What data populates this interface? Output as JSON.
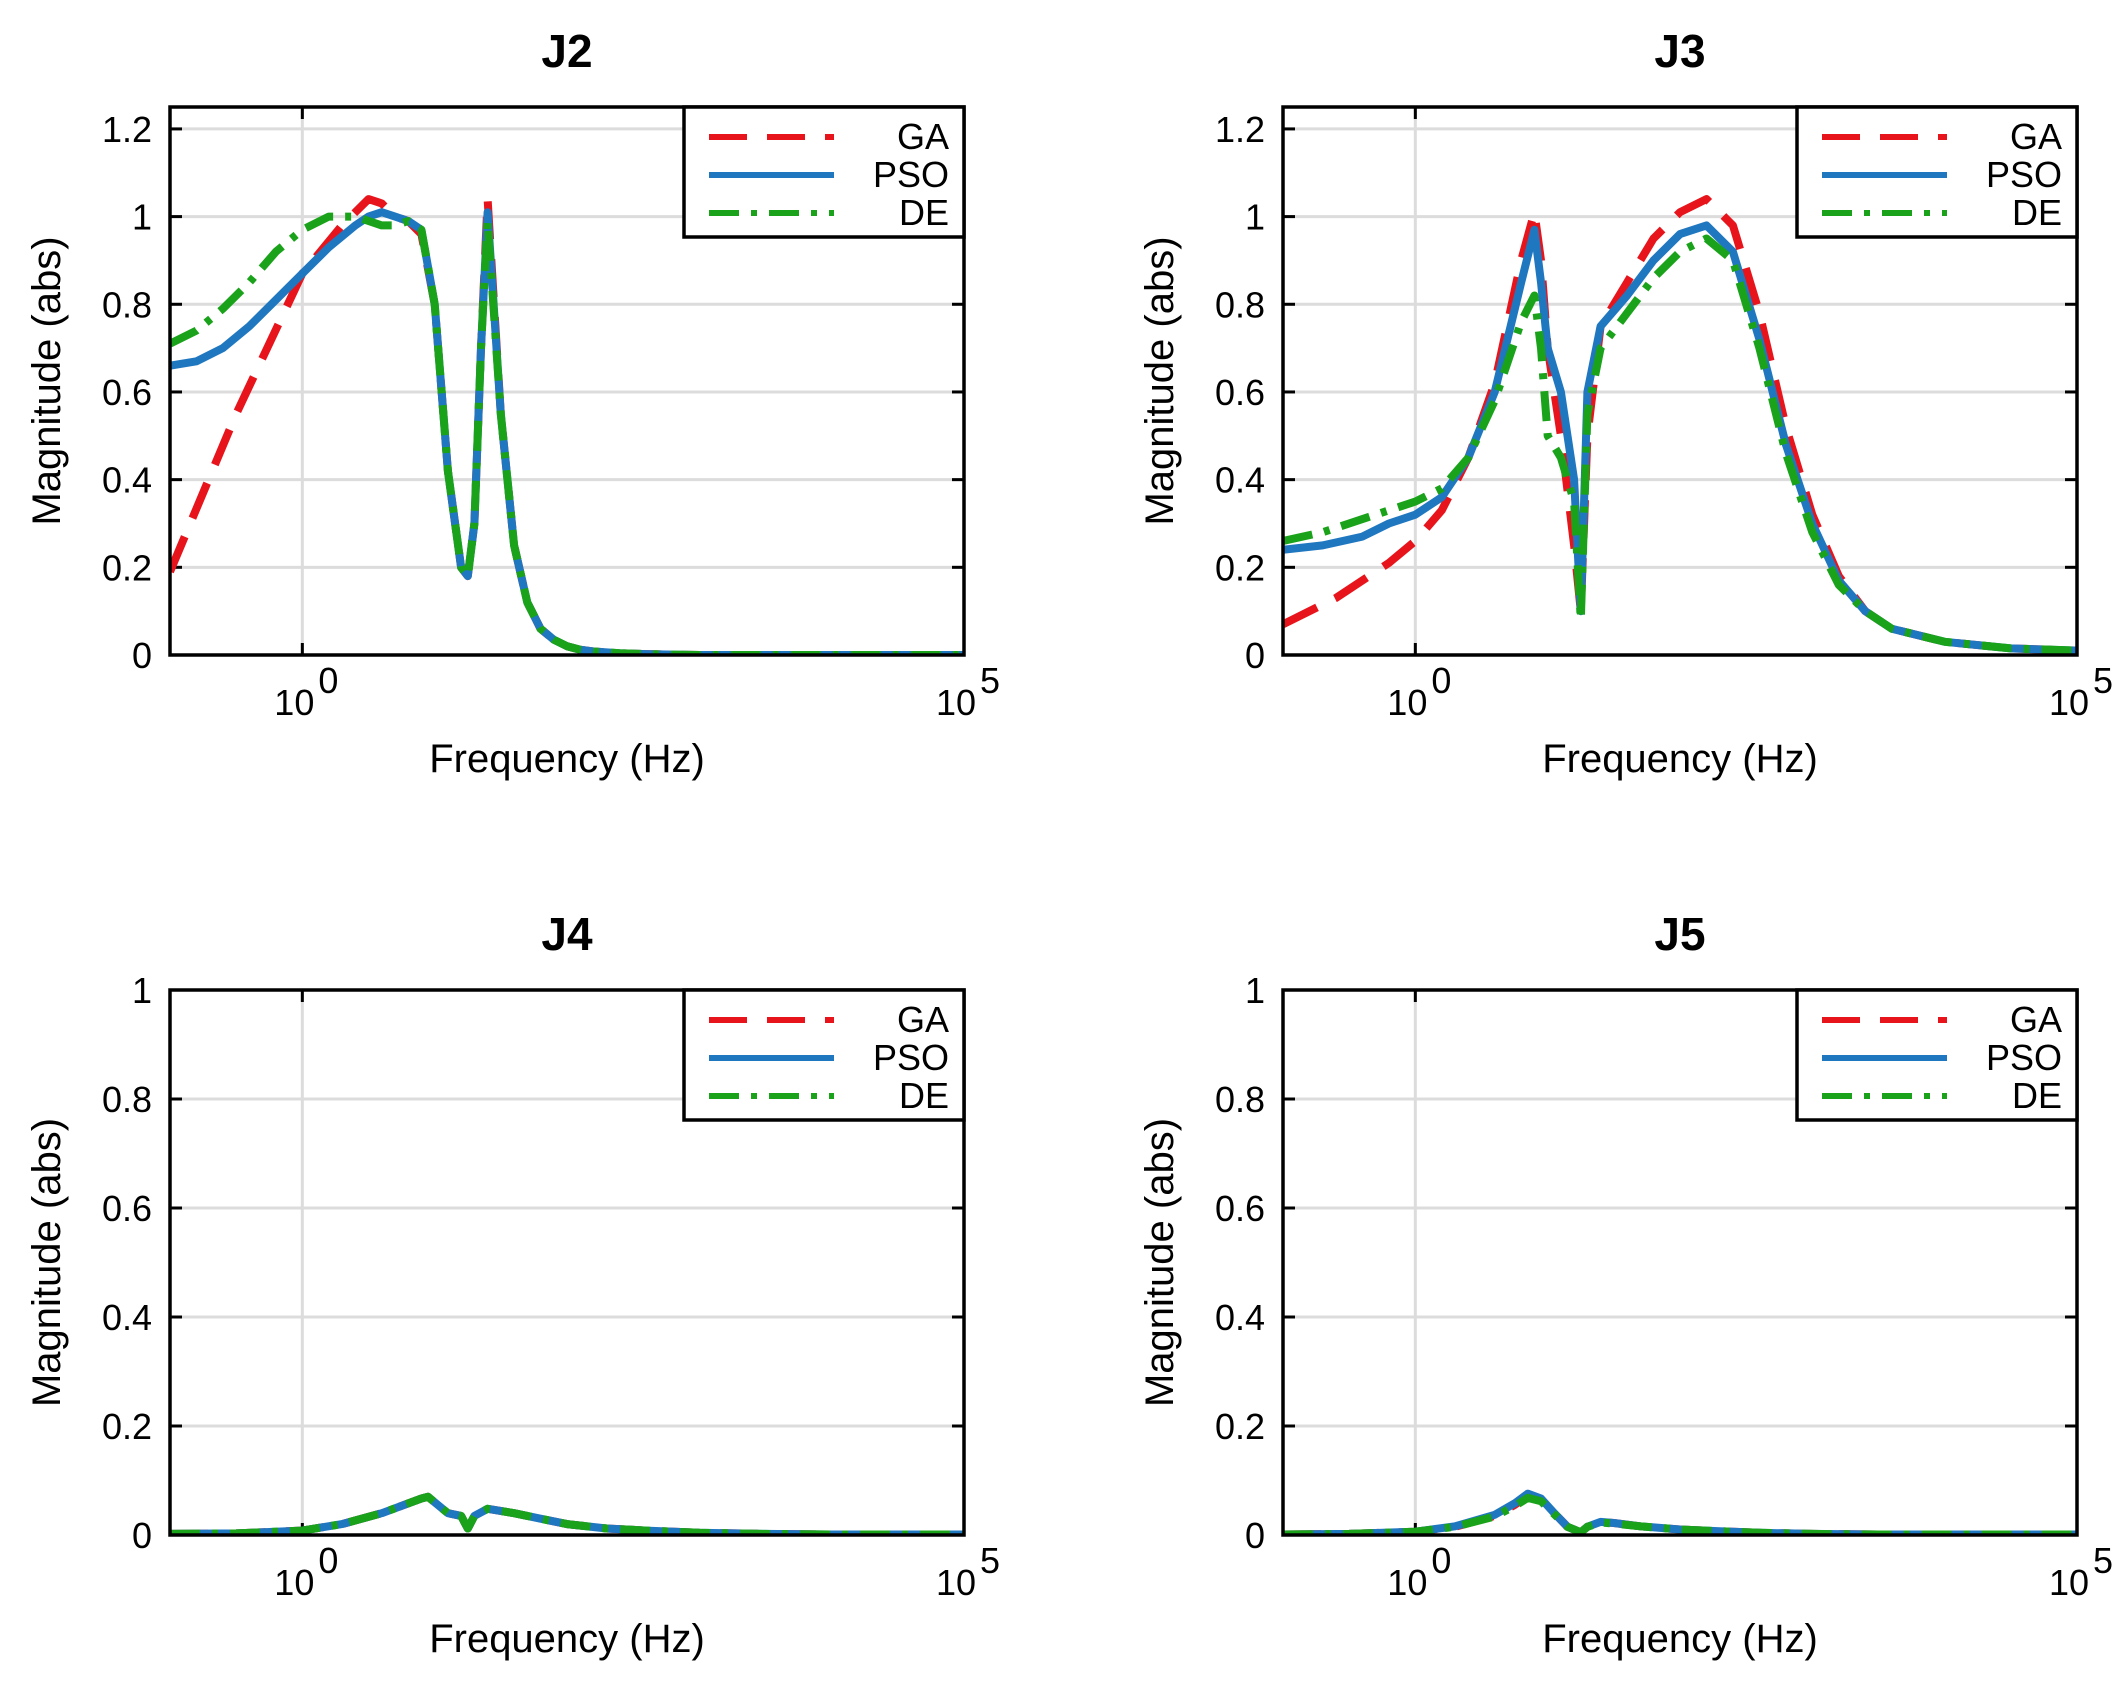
{
  "chart_data": [
    {
      "type": "line",
      "title": "J2",
      "xlabel": "Frequency  (Hz)",
      "ylabel": "Magnitude (abs)",
      "xscale": "log",
      "xlim_log10": [
        -1,
        5
      ],
      "ylim": [
        0,
        1.25
      ],
      "yticks": [
        "0",
        "0.2",
        "0.4",
        "0.6",
        "0.8",
        "1",
        "1.2"
      ],
      "ytick_values": [
        0,
        0.2,
        0.4,
        0.6,
        0.8,
        1,
        1.2
      ],
      "xticks": [
        {
          "base": "10",
          "exp": "0",
          "value": 0
        },
        {
          "base": "10",
          "exp": "5",
          "value": 5
        }
      ],
      "grid": true,
      "legend": "top-right",
      "series": [
        {
          "name": "GA",
          "color": "#e8141c",
          "style": "dashed",
          "x": [
            -1,
            -0.5,
            0,
            0.3,
            0.5,
            0.6,
            0.7,
            0.8,
            0.9,
            1.0,
            1.1,
            1.2,
            1.25,
            1.3,
            1.35,
            1.4,
            1.5,
            1.6,
            1.7,
            1.75,
            1.8,
            1.9,
            2.0,
            2.1,
            2.2,
            2.4,
            2.6,
            2.8,
            3.0,
            3.5,
            4,
            5
          ],
          "y": [
            0.19,
            0.55,
            0.87,
            0.98,
            1.04,
            1.03,
            1.0,
            0.99,
            0.96,
            0.8,
            0.42,
            0.2,
            0.18,
            0.3,
            0.7,
            1.04,
            0.55,
            0.25,
            0.12,
            0.09,
            0.06,
            0.035,
            0.02,
            0.012,
            0.008,
            0.004,
            0.002,
            0.001,
            0,
            0,
            0,
            0
          ]
        },
        {
          "name": "PSO",
          "color": "#1f77c0",
          "style": "solid",
          "x": [
            -1,
            -0.8,
            -0.6,
            -0.4,
            -0.2,
            0,
            0.2,
            0.4,
            0.5,
            0.6,
            0.7,
            0.8,
            0.9,
            1.0,
            1.1,
            1.2,
            1.25,
            1.3,
            1.35,
            1.4,
            1.5,
            1.6,
            1.7,
            1.75,
            1.8,
            1.9,
            2.0,
            2.1,
            2.2,
            2.4,
            2.6,
            2.8,
            3.0,
            3.5,
            4,
            5
          ],
          "y": [
            0.66,
            0.67,
            0.7,
            0.75,
            0.81,
            0.87,
            0.93,
            0.98,
            1.0,
            1.01,
            1.0,
            0.99,
            0.97,
            0.8,
            0.42,
            0.2,
            0.18,
            0.3,
            0.7,
            1.01,
            0.55,
            0.25,
            0.12,
            0.09,
            0.06,
            0.035,
            0.02,
            0.012,
            0.008,
            0.004,
            0.002,
            0.001,
            0,
            0,
            0,
            0
          ]
        },
        {
          "name": "DE",
          "color": "#1aa31a",
          "style": "dashdot",
          "x": [
            -1,
            -0.8,
            -0.6,
            -0.4,
            -0.2,
            0,
            0.2,
            0.4,
            0.5,
            0.6,
            0.7,
            0.8,
            0.9,
            1.0,
            1.1,
            1.2,
            1.25,
            1.3,
            1.35,
            1.4,
            1.5,
            1.6,
            1.7,
            1.75,
            1.8,
            1.9,
            2.0,
            2.1,
            2.2,
            2.4,
            2.6,
            2.8,
            3.0,
            3.5,
            4,
            5
          ],
          "y": [
            0.71,
            0.74,
            0.79,
            0.85,
            0.92,
            0.97,
            1.0,
            1.0,
            0.99,
            0.98,
            0.98,
            0.99,
            0.97,
            0.8,
            0.42,
            0.2,
            0.18,
            0.3,
            0.7,
            0.99,
            0.55,
            0.25,
            0.12,
            0.09,
            0.06,
            0.035,
            0.02,
            0.012,
            0.008,
            0.004,
            0.002,
            0.001,
            0,
            0,
            0,
            0
          ]
        }
      ]
    },
    {
      "type": "line",
      "title": "J3",
      "xlabel": "Frequency  (Hz)",
      "ylabel": "Magnitude (abs)",
      "xscale": "log",
      "xlim_log10": [
        -1,
        5
      ],
      "ylim": [
        0,
        1.25
      ],
      "yticks": [
        "0",
        "0.2",
        "0.4",
        "0.6",
        "0.8",
        "1",
        "1.2"
      ],
      "ytick_values": [
        0,
        0.2,
        0.4,
        0.6,
        0.8,
        1,
        1.2
      ],
      "xticks": [
        {
          "base": "10",
          "exp": "0",
          "value": 0
        },
        {
          "base": "10",
          "exp": "5",
          "value": 5
        }
      ],
      "grid": true,
      "legend": "top-right",
      "series": [
        {
          "name": "GA",
          "color": "#e8141c",
          "style": "dashed",
          "x": [
            -1,
            -0.6,
            -0.2,
            0,
            0.2,
            0.4,
            0.6,
            0.8,
            0.9,
            0.95,
            1.0,
            1.1,
            1.2,
            1.25,
            1.3,
            1.4,
            1.6,
            1.8,
            2.0,
            2.2,
            2.4,
            2.6,
            2.8,
            3.0,
            3.2,
            3.4,
            3.6,
            4.0,
            4.5,
            5
          ],
          "y": [
            0.07,
            0.13,
            0.21,
            0.26,
            0.33,
            0.45,
            0.62,
            0.9,
            1.01,
            0.9,
            0.7,
            0.5,
            0.25,
            0.1,
            0.5,
            0.75,
            0.85,
            0.95,
            1.01,
            1.04,
            0.98,
            0.78,
            0.52,
            0.32,
            0.18,
            0.1,
            0.06,
            0.03,
            0.015,
            0.01
          ]
        },
        {
          "name": "PSO",
          "color": "#1f77c0",
          "style": "solid",
          "x": [
            -1,
            -0.7,
            -0.4,
            -0.2,
            0,
            0.2,
            0.4,
            0.6,
            0.8,
            0.9,
            0.95,
            1.0,
            1.1,
            1.2,
            1.25,
            1.3,
            1.4,
            1.6,
            1.8,
            2.0,
            2.2,
            2.4,
            2.6,
            2.8,
            3.0,
            3.2,
            3.4,
            3.6,
            4.0,
            4.5,
            5
          ],
          "y": [
            0.24,
            0.25,
            0.27,
            0.3,
            0.32,
            0.36,
            0.45,
            0.6,
            0.85,
            0.97,
            0.85,
            0.7,
            0.6,
            0.4,
            0.1,
            0.6,
            0.75,
            0.82,
            0.9,
            0.96,
            0.98,
            0.92,
            0.72,
            0.48,
            0.3,
            0.17,
            0.1,
            0.06,
            0.03,
            0.015,
            0.01
          ]
        },
        {
          "name": "DE",
          "color": "#1aa31a",
          "style": "dashdot",
          "x": [
            -1,
            -0.7,
            -0.4,
            -0.2,
            0,
            0.2,
            0.4,
            0.6,
            0.8,
            0.9,
            0.95,
            1.0,
            1.1,
            1.2,
            1.25,
            1.3,
            1.4,
            1.6,
            1.8,
            2.0,
            2.2,
            2.4,
            2.6,
            2.8,
            3.0,
            3.2,
            3.4,
            3.6,
            4.0,
            4.5,
            5
          ],
          "y": [
            0.26,
            0.28,
            0.31,
            0.33,
            0.35,
            0.38,
            0.45,
            0.58,
            0.76,
            0.82,
            0.7,
            0.5,
            0.45,
            0.35,
            0.08,
            0.55,
            0.7,
            0.78,
            0.86,
            0.92,
            0.95,
            0.9,
            0.7,
            0.46,
            0.28,
            0.16,
            0.1,
            0.06,
            0.03,
            0.015,
            0.01
          ]
        }
      ]
    },
    {
      "type": "line",
      "title": "J4",
      "xlabel": "Frequency  (Hz)",
      "ylabel": "Magnitude (abs)",
      "xscale": "log",
      "xlim_log10": [
        -1,
        5
      ],
      "ylim": [
        0,
        1
      ],
      "yticks": [
        "0",
        "0.2",
        "0.4",
        "0.6",
        "0.8",
        "1"
      ],
      "ytick_values": [
        0,
        0.2,
        0.4,
        0.6,
        0.8,
        1
      ],
      "xticks": [
        {
          "base": "10",
          "exp": "0",
          "value": 0
        },
        {
          "base": "10",
          "exp": "5",
          "value": 5
        }
      ],
      "grid": true,
      "legend": "top-right",
      "series": [
        {
          "name": "GA",
          "color": "#e8141c",
          "style": "dashed",
          "x": [
            -1,
            -0.5,
            0,
            0.3,
            0.6,
            0.8,
            0.9,
            0.95,
            1.0,
            1.1,
            1.2,
            1.25,
            1.3,
            1.4,
            1.6,
            1.8,
            2.0,
            2.3,
            2.6,
            3.0,
            3.5,
            4,
            5
          ],
          "y": [
            0.002,
            0.003,
            0.008,
            0.02,
            0.04,
            0.058,
            0.067,
            0.07,
            0.06,
            0.04,
            0.035,
            0.012,
            0.035,
            0.048,
            0.04,
            0.03,
            0.02,
            0.012,
            0.008,
            0.004,
            0.002,
            0.001,
            0.001
          ]
        },
        {
          "name": "PSO",
          "color": "#1f77c0",
          "style": "solid",
          "x": [
            -1,
            -0.5,
            0,
            0.3,
            0.6,
            0.8,
            0.9,
            0.95,
            1.0,
            1.1,
            1.2,
            1.25,
            1.3,
            1.4,
            1.6,
            1.8,
            2.0,
            2.3,
            2.6,
            3.0,
            3.5,
            4,
            5
          ],
          "y": [
            0.002,
            0.003,
            0.008,
            0.02,
            0.04,
            0.058,
            0.067,
            0.07,
            0.06,
            0.04,
            0.035,
            0.012,
            0.035,
            0.048,
            0.04,
            0.03,
            0.02,
            0.012,
            0.008,
            0.004,
            0.002,
            0.001,
            0.001
          ]
        },
        {
          "name": "DE",
          "color": "#1aa31a",
          "style": "dashdot",
          "x": [
            -1,
            -0.5,
            0,
            0.3,
            0.6,
            0.8,
            0.9,
            0.95,
            1.0,
            1.1,
            1.2,
            1.25,
            1.3,
            1.4,
            1.6,
            1.8,
            2.0,
            2.3,
            2.6,
            3.0,
            3.5,
            4,
            5
          ],
          "y": [
            0.002,
            0.003,
            0.008,
            0.02,
            0.04,
            0.058,
            0.067,
            0.07,
            0.06,
            0.04,
            0.035,
            0.012,
            0.035,
            0.048,
            0.04,
            0.03,
            0.02,
            0.012,
            0.008,
            0.004,
            0.002,
            0.001,
            0.001
          ]
        }
      ]
    },
    {
      "type": "line",
      "title": "J5",
      "xlabel": "Frequency  (Hz)",
      "ylabel": "Magnitude (abs)",
      "xscale": "log",
      "xlim_log10": [
        -1,
        5
      ],
      "ylim": [
        0,
        1
      ],
      "yticks": [
        "0",
        "0.2",
        "0.4",
        "0.6",
        "0.8",
        "1"
      ],
      "ytick_values": [
        0,
        0.2,
        0.4,
        0.6,
        0.8,
        1
      ],
      "xticks": [
        {
          "base": "10",
          "exp": "0",
          "value": 0
        },
        {
          "base": "10",
          "exp": "5",
          "value": 5
        }
      ],
      "grid": true,
      "legend": "top-right",
      "series": [
        {
          "name": "GA",
          "color": "#e8141c",
          "style": "dashed",
          "x": [
            -1,
            -0.5,
            0,
            0.3,
            0.6,
            0.75,
            0.85,
            0.95,
            1.05,
            1.15,
            1.25,
            1.3,
            1.4,
            1.5,
            1.7,
            2.0,
            2.3,
            2.6,
            3.0,
            3.5,
            4,
            5
          ],
          "y": [
            0.001,
            0.002,
            0.006,
            0.015,
            0.035,
            0.055,
            0.072,
            0.065,
            0.04,
            0.015,
            0.005,
            0.015,
            0.024,
            0.022,
            0.016,
            0.01,
            0.007,
            0.004,
            0.002,
            0.001,
            0.001,
            0.001
          ]
        },
        {
          "name": "PSO",
          "color": "#1f77c0",
          "style": "solid",
          "x": [
            -1,
            -0.5,
            0,
            0.3,
            0.6,
            0.75,
            0.85,
            0.95,
            1.05,
            1.15,
            1.25,
            1.3,
            1.4,
            1.5,
            1.7,
            2.0,
            2.3,
            2.6,
            3.0,
            3.5,
            4,
            5
          ],
          "y": [
            0.001,
            0.002,
            0.006,
            0.016,
            0.037,
            0.058,
            0.076,
            0.067,
            0.04,
            0.015,
            0.005,
            0.015,
            0.024,
            0.022,
            0.016,
            0.01,
            0.007,
            0.004,
            0.002,
            0.001,
            0.001,
            0.001
          ]
        },
        {
          "name": "DE",
          "color": "#1aa31a",
          "style": "dashdot",
          "x": [
            -1,
            -0.5,
            0,
            0.3,
            0.6,
            0.75,
            0.85,
            0.95,
            1.05,
            1.15,
            1.25,
            1.3,
            1.4,
            1.5,
            1.7,
            2.0,
            2.3,
            2.6,
            3.0,
            3.5,
            4,
            5
          ],
          "y": [
            0.001,
            0.002,
            0.006,
            0.015,
            0.034,
            0.053,
            0.068,
            0.062,
            0.038,
            0.015,
            0.005,
            0.015,
            0.023,
            0.021,
            0.016,
            0.01,
            0.007,
            0.004,
            0.002,
            0.001,
            0.001,
            0.001
          ]
        }
      ]
    }
  ]
}
